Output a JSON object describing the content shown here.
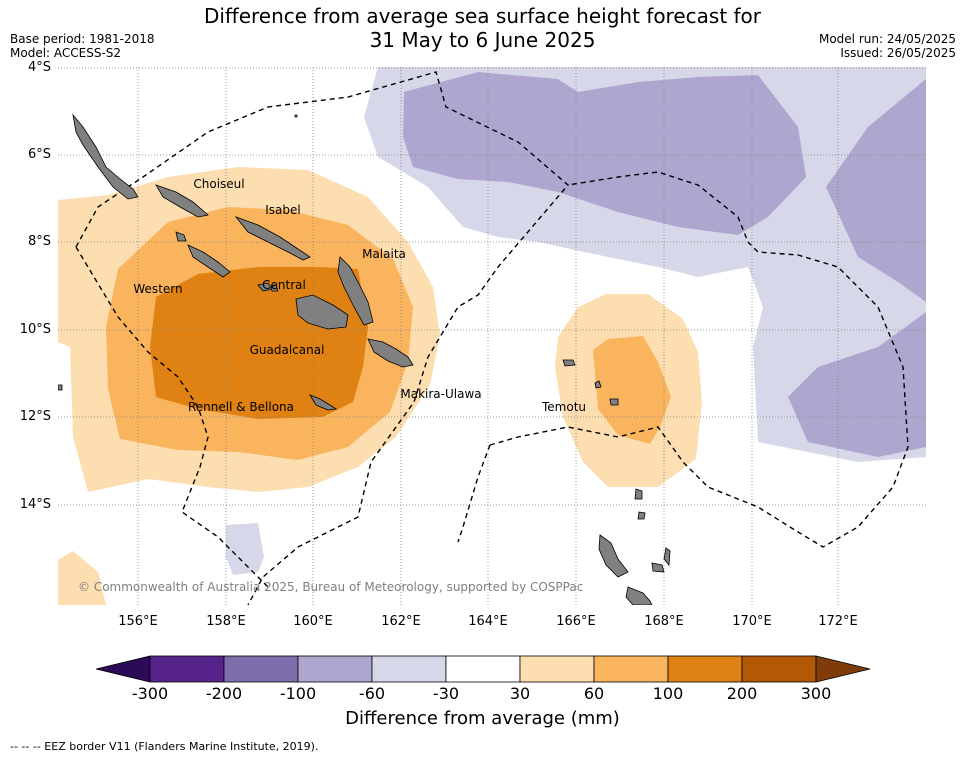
{
  "title_line1": "Difference from average sea surface height forecast for",
  "title_line2": "31 May to 6 June 2025",
  "base_period": "Base period: 1981-2018",
  "model": "Model: ACCESS-S2",
  "model_run": "Model run: 24/05/2025",
  "issued": "Issued: 26/05/2025",
  "copyright": "© Commonwealth of Australia 2025, Bureau of Meteorology, supported by COSPPac",
  "legend_note": "-- -- -- EEZ border V11 (Flanders Marine Institute, 2019).",
  "lat_labels": [
    "4°S",
    "6°S",
    "8°S",
    "10°S",
    "12°S",
    "14°S"
  ],
  "lon_labels": [
    "156°E",
    "158°E",
    "160°E",
    "162°E",
    "164°E",
    "166°E",
    "168°E",
    "170°E",
    "172°E"
  ],
  "places": {
    "choiseul": "Choiseul",
    "isabel": "Isabel",
    "malaita": "Malaita",
    "western": "Western",
    "central": "Central",
    "guadalcanal": "Guadalcanal",
    "makira": "Makira-Ulawa",
    "rennell": "Rennell & Bellona",
    "temotu": "Temotu"
  },
  "colorbar": {
    "title": "Difference from average (mm)",
    "ticks": [
      "-300",
      "-200",
      "-100",
      "-60",
      "-30",
      "30",
      "60",
      "100",
      "200",
      "300"
    ],
    "colors": [
      "#2d0a57",
      "#56238b",
      "#7e6eab",
      "#aea6cf",
      "#d7d7ea",
      "#ffffff",
      "#fddeb1",
      "#fab45d",
      "#e08213",
      "#b35805",
      "#7f3b08"
    ]
  },
  "map_colors": {
    "land": "#808080",
    "positive_30_60": "#fddeb1",
    "positive_60_100": "#fab45d",
    "positive_100_200": "#e08213",
    "negative_30_60": "#d7d7ea",
    "negative_60_100": "#aea6cf"
  }
}
